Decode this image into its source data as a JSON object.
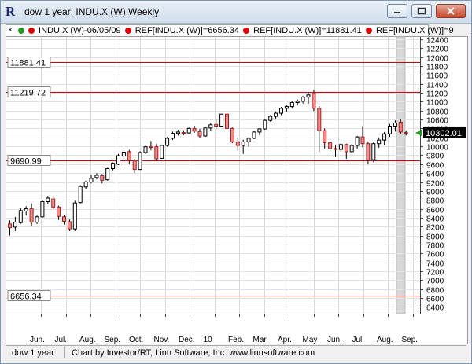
{
  "window": {
    "title": "dow 1 year: INDU.X (W) Weekly"
  },
  "legend": {
    "symbol": "INDU.X (W)-06/05/09",
    "ref1": "REF[INDU.X (W)]=6656.34",
    "ref2": "REF[INDU.X (W)]=11881.41",
    "ref3": "REF[INDU.X (W)]=9"
  },
  "status": {
    "name": "dow 1 year",
    "credit": "Chart by Investor/RT, Linn Software, Inc. www.linnsoftware.com"
  },
  "chart_data": {
    "type": "candlestick",
    "y_ticks": [
      6400,
      6600,
      6800,
      7000,
      7200,
      7400,
      7600,
      7800,
      8000,
      8200,
      8400,
      8600,
      8800,
      9000,
      9200,
      9400,
      9600,
      9800,
      10000,
      10200,
      10400,
      10600,
      10800,
      11000,
      11200,
      11400,
      11600,
      11800,
      12000,
      12200,
      12400
    ],
    "y_tick_labels": [
      "6400",
      "6600",
      "6800",
      "7000",
      "7200",
      "7400",
      "7600",
      "7800",
      "8000",
      "8200",
      "8400",
      "8600",
      "8800",
      "9000",
      "9200",
      "9400",
      "9600",
      "9800",
      "10000",
      "10200",
      "10400",
      "10600",
      "10800",
      "11000",
      "11200",
      "11400",
      "11600",
      "11800",
      "12000",
      "12200",
      "12400"
    ],
    "ylim": [
      6250,
      12450
    ],
    "x_labels": [
      "Jun.",
      "Jul.",
      "Aug.",
      "Sep.",
      "Oct.",
      "Nov.",
      "Dec.",
      "10",
      "Feb.",
      "Mar.",
      "Apr.",
      "May",
      "Jun.",
      "Jul.",
      "Aug.",
      "Sep."
    ],
    "ref_lines": [
      {
        "label": "11881.41",
        "value": 11881.41
      },
      {
        "label": "11219.72",
        "value": 11219.72
      },
      {
        "label": "9690.99",
        "value": 9690.99
      },
      {
        "label": "6656.34",
        "value": 6656.34
      }
    ],
    "last_price": {
      "label": "10302.01",
      "value": 10302.01
    },
    "candles": [
      [
        8260,
        8340,
        8000,
        8180
      ],
      [
        8190,
        8420,
        8100,
        8300
      ],
      [
        8290,
        8620,
        8260,
        8560
      ],
      [
        8550,
        8660,
        8450,
        8600
      ],
      [
        8600,
        8720,
        8210,
        8300
      ],
      [
        8300,
        8450,
        8260,
        8420
      ],
      [
        8420,
        8800,
        8400,
        8760
      ],
      [
        8760,
        8890,
        8710,
        8840
      ],
      [
        8820,
        8860,
        8590,
        8640
      ],
      [
        8640,
        8670,
        8350,
        8430
      ],
      [
        8420,
        8460,
        8250,
        8320
      ],
      [
        8310,
        8360,
        8100,
        8150
      ],
      [
        8150,
        8780,
        8100,
        8730
      ],
      [
        8740,
        9130,
        8720,
        9100
      ],
      [
        9090,
        9230,
        9050,
        9200
      ],
      [
        9200,
        9360,
        9170,
        9280
      ],
      [
        9300,
        9400,
        9260,
        9350
      ],
      [
        9340,
        9380,
        9170,
        9240
      ],
      [
        9250,
        9520,
        9230,
        9500
      ],
      [
        9500,
        9640,
        9460,
        9620
      ],
      [
        9600,
        9830,
        9580,
        9790
      ],
      [
        9780,
        9910,
        9720,
        9870
      ],
      [
        9880,
        9920,
        9600,
        9690
      ],
      [
        9680,
        9720,
        9400,
        9480
      ],
      [
        9480,
        9890,
        9470,
        9860
      ],
      [
        9860,
        10010,
        9830,
        9990
      ],
      [
        9990,
        10120,
        9910,
        9980
      ],
      [
        9990,
        10050,
        9690,
        9720
      ],
      [
        9730,
        10040,
        9720,
        10020
      ],
      [
        10020,
        10210,
        9990,
        10180
      ],
      [
        10180,
        10330,
        10140,
        10290
      ],
      [
        10290,
        10370,
        10240,
        10320
      ],
      [
        10310,
        10360,
        10250,
        10300
      ],
      [
        10300,
        10420,
        10280,
        10400
      ],
      [
        10400,
        10460,
        10300,
        10340
      ],
      [
        10330,
        10390,
        10180,
        10230
      ],
      [
        10230,
        10430,
        10210,
        10410
      ],
      [
        10410,
        10520,
        10350,
        10480
      ],
      [
        10490,
        10600,
        10380,
        10450
      ],
      [
        10450,
        10730,
        10440,
        10720
      ],
      [
        10720,
        10740,
        10380,
        10400
      ],
      [
        10400,
        10420,
        10070,
        10100
      ],
      [
        10100,
        10190,
        9900,
        10020
      ],
      [
        10020,
        10150,
        9830,
        10100
      ],
      [
        10100,
        10200,
        9990,
        10180
      ],
      [
        10180,
        10350,
        10160,
        10320
      ],
      [
        10320,
        10410,
        10250,
        10390
      ],
      [
        10390,
        10600,
        10370,
        10580
      ],
      [
        10580,
        10700,
        10550,
        10670
      ],
      [
        10670,
        10780,
        10620,
        10740
      ],
      [
        10740,
        10880,
        10700,
        10850
      ],
      [
        10850,
        10920,
        10780,
        10890
      ],
      [
        10890,
        11000,
        10850,
        10980
      ],
      [
        10980,
        11050,
        10920,
        11010
      ],
      [
        11010,
        11130,
        10960,
        11100
      ],
      [
        11100,
        11210,
        10950,
        11150
      ],
      [
        11200,
        11260,
        10790,
        10850
      ],
      [
        10850,
        10900,
        9870,
        10350
      ],
      [
        10350,
        10400,
        9950,
        10080
      ],
      [
        10080,
        10100,
        9880,
        9950
      ],
      [
        9950,
        10040,
        9760,
        9930
      ],
      [
        9930,
        10100,
        9880,
        10040
      ],
      [
        10040,
        10060,
        9720,
        9880
      ],
      [
        9880,
        10050,
        9850,
        10020
      ],
      [
        10020,
        10230,
        9950,
        10210
      ],
      [
        10210,
        10450,
        9980,
        10060
      ],
      [
        10060,
        10110,
        9610,
        9690
      ],
      [
        9700,
        10090,
        9640,
        10060
      ],
      [
        10060,
        10200,
        9970,
        10140
      ],
      [
        10140,
        10320,
        10030,
        10280
      ],
      [
        10280,
        10500,
        10210,
        10450
      ],
      [
        10450,
        10580,
        10330,
        10520
      ],
      [
        10540,
        10600,
        10280,
        10320
      ],
      [
        10310,
        10350,
        10240,
        10300
      ]
    ]
  }
}
